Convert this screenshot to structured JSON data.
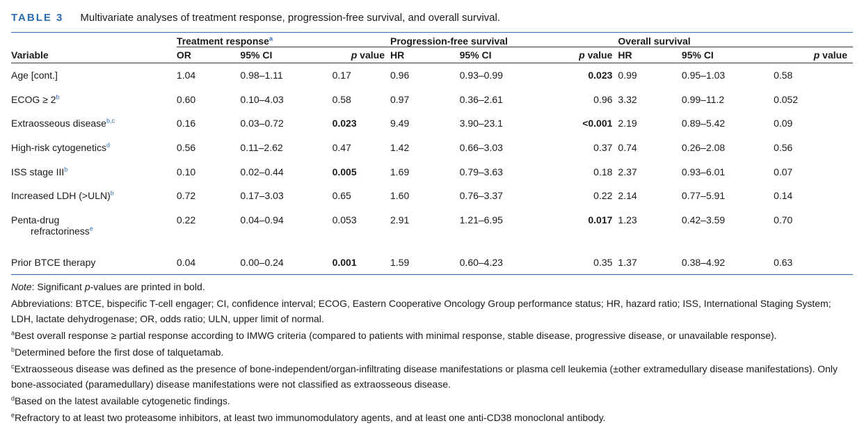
{
  "caption": {
    "label": "TABLE 3",
    "title": "Multivariate analyses of treatment response, progression-free survival, and overall survival."
  },
  "groups": {
    "tr": "Treatment response",
    "tr_sup": "a",
    "pfs": "Progression-free survival",
    "os": "Overall survival"
  },
  "headers": {
    "variable": "Variable",
    "or": "OR",
    "ci": "95% CI",
    "p": "p",
    "p_rest": " value",
    "hr": "HR"
  },
  "rows": [
    {
      "var": "Age [cont.]",
      "sup": "",
      "tr_or": "1.04",
      "tr_ci": "0.98–1.11",
      "tr_p": "0.17",
      "pfs_hr": "0.96",
      "pfs_ci": "0.93–0.99",
      "pfs_p": "0.023",
      "os_hr": "0.99",
      "os_ci": "0.95–1.03",
      "os_p": "0.58"
    },
    {
      "var": "ECOG ≥ 2",
      "sup": "b",
      "tr_or": "0.60",
      "tr_ci": "0.10–4.03",
      "tr_p": "0.58",
      "pfs_hr": "0.97",
      "pfs_ci": "0.36–2.61",
      "pfs_p": "0.96",
      "os_hr": "3.32",
      "os_ci": "0.99–11.2",
      "os_p": "0.052"
    },
    {
      "var": "Extraosseous disease",
      "sup": "b,c",
      "tr_or": "0.16",
      "tr_ci": "0.03–0.72",
      "tr_p": "0.023",
      "pfs_hr": "9.49",
      "pfs_ci": "3.90–23.1",
      "pfs_p": "<0.001",
      "os_hr": "2.19",
      "os_ci": "0.89–5.42",
      "os_p": "0.09"
    },
    {
      "var": "High-risk cytogenetics",
      "sup": "d",
      "tr_or": "0.56",
      "tr_ci": "0.11–2.62",
      "tr_p": "0.47",
      "pfs_hr": "1.42",
      "pfs_ci": "0.66–3.03",
      "pfs_p": "0.37",
      "os_hr": "0.74",
      "os_ci": "0.26–2.08",
      "os_p": "0.56"
    },
    {
      "var": "ISS stage III",
      "sup": "b",
      "tr_or": "0.10",
      "tr_ci": "0.02–0.44",
      "tr_p": "0.005",
      "pfs_hr": "1.69",
      "pfs_ci": "0.79–3.63",
      "pfs_p": "0.18",
      "os_hr": "2.37",
      "os_ci": "0.93–6.01",
      "os_p": "0.07"
    },
    {
      "var": "Increased LDH (>ULN)",
      "sup": "b",
      "tr_or": "0.72",
      "tr_ci": "0.17–3.03",
      "tr_p": "0.65",
      "pfs_hr": "1.60",
      "pfs_ci": "0.76–3.37",
      "pfs_p": "0.22",
      "os_hr": "2.14",
      "os_ci": "0.77–5.91",
      "os_p": "0.14"
    },
    {
      "var": "Penta-drug",
      "var2": "refractoriness",
      "sup": "e",
      "tr_or": "0.22",
      "tr_ci": "0.04–0.94",
      "tr_p": "0.053",
      "pfs_hr": "2.91",
      "pfs_ci": "1.21–6.95",
      "pfs_p": "0.017",
      "os_hr": "1.23",
      "os_ci": "0.42–3.59",
      "os_p": "0.70"
    },
    {
      "var": "Prior BTCE therapy",
      "sup": "",
      "tr_or": "0.04",
      "tr_ci": "0.00–0.24",
      "tr_p": "0.001",
      "pfs_hr": "1.59",
      "pfs_ci": "0.60–4.23",
      "pfs_p": "0.35",
      "os_hr": "1.37",
      "os_ci": "0.38–4.92",
      "os_p": "0.63"
    }
  ],
  "notes": {
    "note_label": "Note",
    "note_a": ": Significant ",
    "note_p": "p",
    "note_b": "-values are printed in bold.",
    "abbrev": "Abbreviations: BTCE, bispecific T-cell engager; CI, confidence interval; ECOG, Eastern Cooperative Oncology Group performance status; HR, hazard ratio; ISS, International Staging System; LDH, lactate dehydrogenase; OR, odds ratio; ULN, upper limit of normal.",
    "fa_sup": "a",
    "fa": "Best overall response ≥ partial response according to IMWG criteria (compared to patients with minimal response, stable disease, progressive disease, or unavailable response).",
    "fb_sup": "b",
    "fb": "Determined before the first dose of talquetamab.",
    "fc_sup": "c",
    "fc": "Extraosseous disease was defined as the presence of bone-independent/organ-infiltrating disease manifestations or plasma cell leukemia (±other extramedullary disease manifestations). Only bone-associated (paramedullary) disease manifestations were not classified as extraosseous disease.",
    "fd_sup": "d",
    "fd": "Based on the latest available cytogenetic findings.",
    "fe_sup": "e",
    "fe": "Refractory to at least two proteasome inhibitors, at least two immunomodulatory agents, and at least one anti-CD38 monoclonal antibody."
  }
}
